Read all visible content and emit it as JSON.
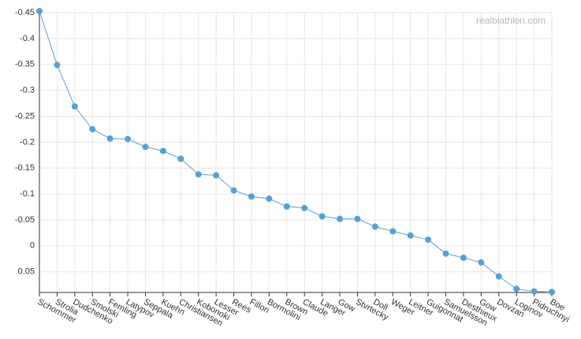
{
  "watermark": "realbiathlon.com",
  "colors": {
    "series": "#5b9fd0",
    "grid": "#e6e6e6",
    "axis": "#333333"
  },
  "chart_data": {
    "type": "line",
    "y_reversed": true,
    "ylim": [
      -0.45,
      0.09
    ],
    "yticks": [
      -0.45,
      -0.4,
      -0.35,
      -0.3,
      -0.25,
      -0.2,
      -0.15,
      -0.1,
      -0.05,
      0,
      0.05
    ],
    "ytick_labels": [
      "-0.45",
      "-0.4",
      "-0.35",
      "-0.3",
      "-0.25",
      "-0.2",
      "-0.15",
      "-0.1",
      "-0.05",
      "0",
      "0.05"
    ],
    "grid": true,
    "categories": [
      "Schommer",
      "Strolia",
      "Dudchenko",
      "Smolski",
      "Femling",
      "Latypov",
      "Seppala",
      "Kuehn",
      "Christiansen",
      "Kobonoki",
      "Lesser",
      "Rees",
      "Fillon",
      "Bormolini",
      "Brown",
      "Claude",
      "Langer",
      "Gow",
      "Stvrtecky",
      "Doll",
      "Weger",
      "Leitner",
      "Guigonnat",
      "Samuelsson",
      "Desthieux",
      "Gow",
      "Dovzan",
      "Loginov",
      "Pidruchnyi",
      "Boe"
    ],
    "values": [
      -0.453,
      -0.349,
      -0.269,
      -0.225,
      -0.207,
      -0.206,
      -0.191,
      -0.183,
      -0.168,
      -0.138,
      -0.136,
      -0.107,
      -0.095,
      -0.091,
      -0.076,
      -0.073,
      -0.057,
      -0.052,
      -0.052,
      -0.037,
      -0.028,
      -0.02,
      -0.012,
      0.015,
      0.023,
      0.032,
      0.059,
      0.083,
      0.088,
      0.089
    ]
  }
}
